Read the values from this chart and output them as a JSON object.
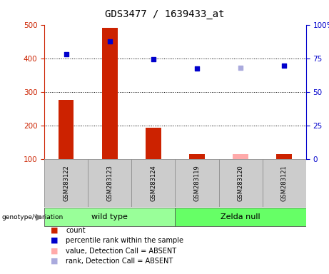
{
  "title": "GDS3477 / 1639433_at",
  "samples": [
    "GSM283122",
    "GSM283123",
    "GSM283124",
    "GSM283119",
    "GSM283120",
    "GSM283121"
  ],
  "count_values": [
    275,
    490,
    192,
    115,
    null,
    115
  ],
  "count_absent_values": [
    null,
    null,
    null,
    null,
    115,
    null
  ],
  "rank_values": [
    411,
    450,
    397,
    370,
    null,
    378
  ],
  "rank_absent_values": [
    null,
    null,
    null,
    null,
    371,
    null
  ],
  "left_ylim": [
    100,
    500
  ],
  "right_ylim": [
    0,
    100
  ],
  "left_yticks": [
    100,
    200,
    300,
    400,
    500
  ],
  "right_yticks": [
    0,
    25,
    50,
    75,
    100
  ],
  "right_yticklabels": [
    "0",
    "25",
    "50",
    "75",
    "100%"
  ],
  "bar_color": "#cc2200",
  "bar_absent_color": "#ffaaaa",
  "rank_color": "#0000cc",
  "rank_absent_color": "#aaaadd",
  "groups": [
    {
      "label": "wild type",
      "indices": [
        0,
        1,
        2
      ],
      "color": "#99ff99"
    },
    {
      "label": "Zelda null",
      "indices": [
        3,
        4,
        5
      ],
      "color": "#66ff66"
    }
  ],
  "bg_color": "#ffffff",
  "plot_bg_color": "#ffffff",
  "legend_items": [
    {
      "label": "count",
      "color": "#cc2200"
    },
    {
      "label": "percentile rank within the sample",
      "color": "#0000cc"
    },
    {
      "label": "value, Detection Call = ABSENT",
      "color": "#ffaaaa"
    },
    {
      "label": "rank, Detection Call = ABSENT",
      "color": "#aaaadd"
    }
  ],
  "grid_levels": [
    200,
    300,
    400
  ],
  "label_area_color": "#cccccc",
  "group_area_color": "#ffffff"
}
